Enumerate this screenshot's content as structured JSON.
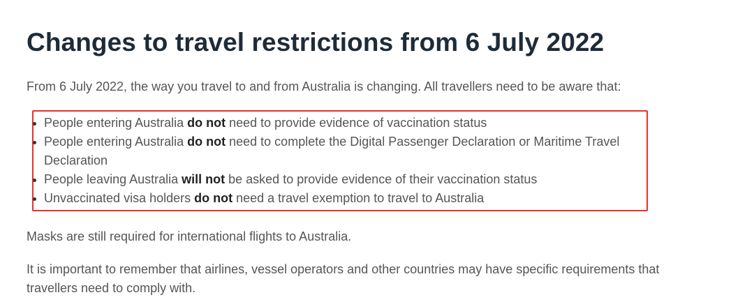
{
  "title": "Changes to travel restrictions from 6 July 2022",
  "intro": "From 6 July 2022, the way you travel to and from Australia is changing. All travellers need to be aware that:",
  "bullets": [
    {
      "pre": "People entering Australia ",
      "bold": "do not",
      "post": " need to provide evidence of vaccination status"
    },
    {
      "pre": "People entering Australia ",
      "bold": "do not",
      "post": " need to complete the Digital Passenger Declaration or Maritime Travel Declaration"
    },
    {
      "pre": "People leaving Australia ",
      "bold": "will not",
      "post": " be asked to provide evidence of their vaccination status"
    },
    {
      "pre": "Unvaccinated visa holders ",
      "bold": "do not",
      "post": " need a travel exemption to travel to Australia"
    }
  ],
  "masks": "Masks are still required for international flights to Australia.",
  "remember": "It is important to remember that airlines, vessel operators and other countries may have specific requirements that travellers need to comply with.",
  "highlight_color": "#e8302b"
}
